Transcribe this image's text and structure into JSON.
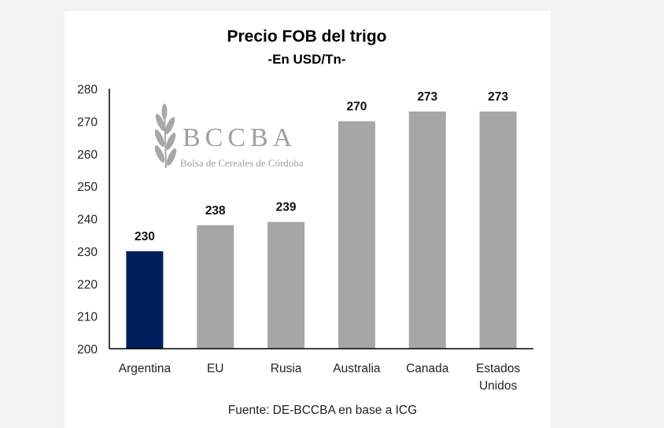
{
  "chart_data": {
    "type": "bar",
    "title": "Precio FOB del trigo",
    "subtitle": "-En USD/Tn-",
    "categories": [
      "Argentina",
      "EU",
      "Rusia",
      "Australia",
      "Canada",
      "Estados Unidos"
    ],
    "category_lines": [
      [
        "Argentina"
      ],
      [
        "EU"
      ],
      [
        "Rusia"
      ],
      [
        "Australia"
      ],
      [
        "Canada"
      ],
      [
        "Estados",
        "Unidos"
      ]
    ],
    "values": [
      230,
      238,
      239,
      270,
      273,
      273
    ],
    "data_labels": [
      "230",
      "238",
      "239",
      "270",
      "273",
      "273"
    ],
    "bar_colors": [
      "#00205b",
      "#a6a6a6",
      "#a6a6a6",
      "#a6a6a6",
      "#a6a6a6",
      "#a6a6a6"
    ],
    "ylim": [
      200,
      280
    ],
    "yticks": [
      200,
      210,
      220,
      230,
      240,
      250,
      260,
      270,
      280
    ],
    "xlabel": "",
    "ylabel": "",
    "grid": false,
    "legend": "none",
    "source": "Fuente: DE-BCCBA en base a ICG"
  },
  "watermark": {
    "logo_text": "BCCBA",
    "logo_subtext": "Bolsa de Cereales de Córdoba",
    "icon": "wheat-icon"
  }
}
